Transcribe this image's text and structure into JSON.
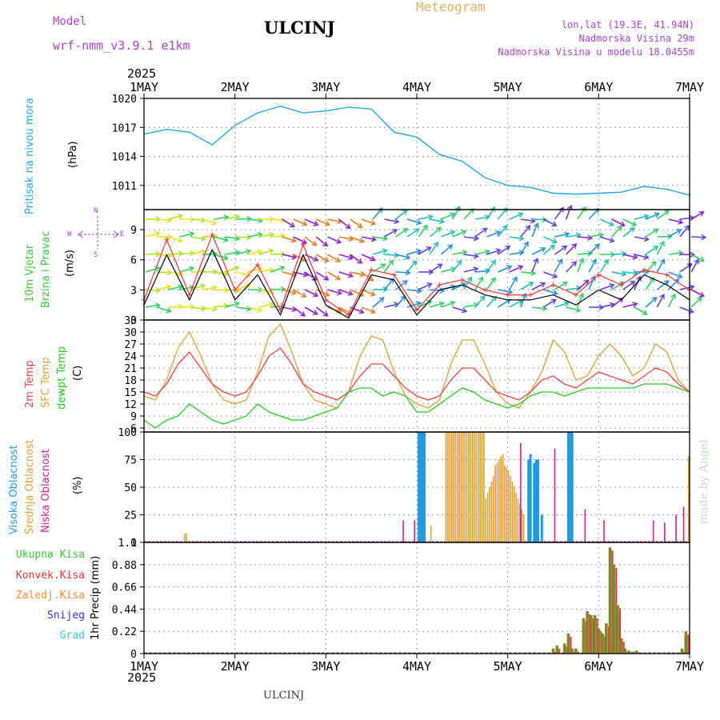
{
  "header": {
    "model_label": "Model",
    "model_name": "wrf-nmm_v3.9.1  e1km",
    "station": "ULCINJ",
    "meteogram_title": "Meteogram",
    "coords": "lon,lat (19.3E, 41.94N)",
    "elevation": "Nadmorska Visina 29m",
    "model_elevation": "Nadmorska Visina u modelu 18.0455m",
    "year_top": "2025",
    "year_bottom": "2025",
    "footer_station": "ULCINJ",
    "credit": "made by Angel"
  },
  "colors": {
    "pressure": "#1ea7e8",
    "wind_label": "#33cc33",
    "gust": "#ff3333",
    "wind_speed": "#000000",
    "temp2m": "#ee4444",
    "sfc_temp": "#e0a030",
    "dewpt": "#22cc22",
    "cloud_high": "#1e9be3",
    "cloud_mid": "#e0a030",
    "cloud_low": "#cc2299",
    "precip_total": "#33cc33",
    "precip_conv": "#ee3333",
    "precip_strat": "#ff8833",
    "precip_snow": "#3333dd",
    "precip_grad": "#33cccc",
    "precip_bar": "#7a8a2a",
    "compass": "#aa44cc"
  },
  "compass": {
    "n": "N",
    "w": "W",
    "e": "E",
    "s": "S"
  },
  "chart_data": [
    {
      "id": "pressure",
      "type": "line",
      "label_left": "Pritisak na nivou mora",
      "unit": "(hPa)",
      "x_categories": [
        "1MAY",
        "2MAY",
        "3MAY",
        "4MAY",
        "5MAY",
        "6MAY",
        "7MAY"
      ],
      "ylim": [
        1008.5,
        1020
      ],
      "yticks": [
        1011,
        1014,
        1017,
        1020
      ],
      "x_hours": [
        0,
        6,
        12,
        18,
        24,
        30,
        36,
        42,
        48,
        54,
        60,
        66,
        72,
        78,
        84,
        90,
        96,
        102,
        108,
        114,
        120,
        126,
        132,
        138,
        144
      ],
      "values": [
        1016.3,
        1016.8,
        1016.5,
        1015.2,
        1017.2,
        1018.5,
        1019.2,
        1018.5,
        1018.7,
        1019.1,
        1018.9,
        1016.5,
        1016.0,
        1014.2,
        1013.5,
        1011.8,
        1011.0,
        1010.8,
        1010.2,
        1010.1,
        1010.2,
        1010.3,
        1010.9,
        1010.6,
        1010.0
      ]
    },
    {
      "id": "wind",
      "type": "line",
      "label_left_1": "10m Vjetar",
      "label_left_2": "Brzina i Pravac",
      "unit": "(m/s)",
      "ylim": [
        0,
        11
      ],
      "yticks": [
        0,
        3,
        6,
        9
      ],
      "x_hours": [
        0,
        6,
        12,
        18,
        24,
        30,
        36,
        42,
        48,
        54,
        60,
        66,
        72,
        78,
        84,
        90,
        96,
        102,
        108,
        114,
        120,
        126,
        132,
        138,
        144
      ],
      "series": [
        {
          "name": "gust",
          "values": [
            2.0,
            8.0,
            2.5,
            8.5,
            3.0,
            5.5,
            1.0,
            7.5,
            2.0,
            0.5,
            5.0,
            4.5,
            1.0,
            3.5,
            4.0,
            3.0,
            2.5,
            2.5,
            3.5,
            2.5,
            4.5,
            3.5,
            5.0,
            4.5,
            3.0
          ]
        },
        {
          "name": "speed",
          "values": [
            1.5,
            6.5,
            2.0,
            7.0,
            2.0,
            4.5,
            0.5,
            6.5,
            1.5,
            0.2,
            4.5,
            4.0,
            0.5,
            3.0,
            3.5,
            2.5,
            2.0,
            2.0,
            2.5,
            1.5,
            3.0,
            2.0,
            4.5,
            3.5,
            2.0
          ]
        }
      ]
    },
    {
      "id": "temperature",
      "type": "line",
      "label_left_1": "2m Temp",
      "label_left_2": "SFC Temp",
      "label_left_3": "dewpt Temp",
      "unit": "(C)",
      "ylim": [
        5,
        33
      ],
      "yticks": [
        6,
        9,
        12,
        15,
        18,
        21,
        24,
        27,
        30,
        33
      ],
      "x_hours": [
        0,
        3,
        6,
        9,
        12,
        15,
        18,
        21,
        24,
        27,
        30,
        33,
        36,
        39,
        42,
        45,
        48,
        51,
        54,
        57,
        60,
        63,
        66,
        69,
        72,
        75,
        78,
        81,
        84,
        87,
        90,
        93,
        96,
        99,
        102,
        105,
        108,
        111,
        114,
        117,
        120,
        123,
        126,
        129,
        132,
        135,
        138,
        141,
        144
      ],
      "series": [
        {
          "name": "2m Temp",
          "values": [
            15,
            14,
            17,
            22,
            25,
            21,
            17,
            15,
            14,
            15,
            19,
            24,
            26,
            22,
            17,
            15,
            14,
            13,
            15,
            19,
            22,
            22,
            19,
            16,
            14,
            13,
            14,
            18,
            21,
            21,
            18,
            15,
            14,
            13,
            15,
            18,
            19,
            17,
            16,
            18,
            20,
            19,
            18,
            17,
            19,
            21,
            20,
            17,
            15
          ]
        },
        {
          "name": "SFC Temp",
          "values": [
            14,
            13,
            18,
            26,
            30,
            24,
            17,
            13,
            12,
            13,
            20,
            29,
            32,
            25,
            17,
            13,
            12,
            11,
            15,
            24,
            29,
            28,
            20,
            14,
            12,
            11,
            13,
            22,
            28,
            28,
            22,
            15,
            12,
            11,
            15,
            20,
            28,
            25,
            18,
            19,
            24,
            27,
            24,
            19,
            21,
            27,
            25,
            18,
            15
          ]
        },
        {
          "name": "dewpt Temp",
          "values": [
            8,
            6,
            8,
            9,
            12,
            10,
            8,
            7,
            8,
            9,
            12,
            10,
            9,
            8,
            8,
            9,
            10,
            11,
            15,
            16,
            16,
            14,
            15,
            14,
            10,
            10,
            12,
            14,
            16,
            15,
            13,
            12,
            11,
            12,
            14,
            15,
            15,
            14,
            15,
            16,
            16,
            16,
            16,
            16,
            17,
            17,
            17,
            16,
            15
          ]
        }
      ]
    },
    {
      "id": "clouds",
      "type": "bar",
      "label_left_1": "Visoka Oblacnost",
      "label_left_2": "Srednja Oblacnost",
      "label_left_3": "Niska Oblacnost",
      "unit": "(%)",
      "ylim": [
        0,
        100
      ],
      "yticks": [
        0,
        25,
        50,
        75,
        100
      ],
      "series": [
        {
          "name": "Visoka Oblacnost",
          "hours": [
            72.5,
            73.0,
            73.5,
            74.0,
            101.5,
            102.0,
            103.0,
            103.5,
            104.0,
            105.0,
            112.0,
            112.5,
            113.0
          ],
          "values": [
            100,
            100,
            100,
            100,
            75,
            80,
            72,
            75,
            75,
            25,
            100,
            100,
            100
          ]
        },
        {
          "name": "Srednja Oblacnost",
          "hours": [
            10.5,
            11.0,
            75.5,
            79.5,
            80.0,
            80.5,
            81.0,
            81.5,
            82.0,
            82.5,
            83.0,
            83.5,
            84.0,
            84.5,
            85.0,
            85.5,
            86.0,
            86.5,
            87.0,
            87.5,
            88.0,
            88.5,
            89.0,
            89.5,
            90.0,
            90.5,
            91.0,
            91.5,
            92.0,
            92.5,
            93.0,
            93.5,
            94.0,
            94.5,
            95.0,
            95.5,
            96.0,
            96.5,
            97.0,
            97.5,
            98.0,
            98.5,
            99.0,
            99.5,
            100.0,
            143.5
          ],
          "values": [
            8,
            8,
            15,
            100,
            100,
            100,
            100,
            100,
            100,
            100,
            100,
            100,
            100,
            100,
            100,
            100,
            100,
            100,
            100,
            100,
            100,
            100,
            100,
            100,
            40,
            45,
            50,
            55,
            60,
            70,
            72,
            75,
            78,
            80,
            70,
            68,
            65,
            60,
            55,
            50,
            45,
            40,
            35,
            30,
            25,
            78
          ]
        },
        {
          "name": "Niska Oblacnost",
          "hours": [
            68.0,
            71.0,
            99.0,
            108.0,
            116.0,
            121.0,
            134.0,
            137.0,
            140.0,
            142.0
          ],
          "values": [
            20,
            20,
            90,
            85,
            30,
            20,
            20,
            18,
            25,
            32
          ]
        }
      ]
    },
    {
      "id": "precip",
      "type": "bar",
      "label_left_1": "Ukupna Kisa",
      "label_left_2": "Konvek.Kisa",
      "label_left_3": "Zaledj.Kisa",
      "label_left_4": "Snijeg",
      "label_left_5": "Grad",
      "unit": "1hr Precip (mm)",
      "ylim": [
        0,
        1.1
      ],
      "yticks": [
        0,
        0.22,
        0.44,
        0.66,
        0.88,
        1.1
      ],
      "x_categories": [
        "1MAY",
        "2MAY",
        "3MAY",
        "4MAY",
        "5MAY",
        "6MAY",
        "7MAY"
      ],
      "hours": [
        108,
        109,
        111,
        112,
        113,
        114,
        116,
        117,
        118,
        119,
        120,
        121,
        122,
        123,
        124,
        125,
        126,
        127,
        128,
        129,
        130,
        142,
        143
      ],
      "values": [
        0.05,
        0.08,
        0.1,
        0.2,
        0.05,
        0.05,
        0.35,
        0.42,
        0.38,
        0.38,
        0.25,
        0.2,
        0.3,
        1.05,
        0.88,
        0.48,
        0.15,
        0.05,
        0.03,
        0.02,
        0.03,
        0.05,
        0.22
      ]
    }
  ]
}
